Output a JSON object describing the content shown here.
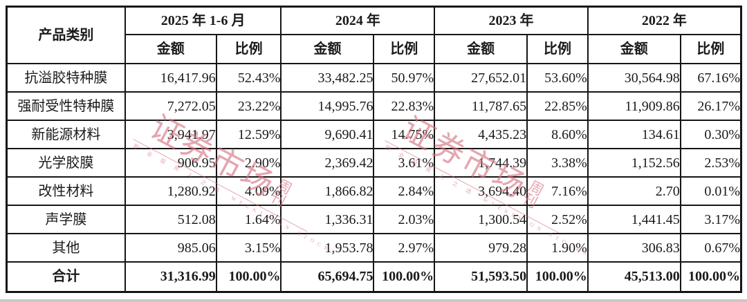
{
  "table": {
    "corner_header": "产品类别",
    "col_groups": [
      {
        "label": "2025 年 1-6 月",
        "amount_header": "金额",
        "ratio_header": "比例"
      },
      {
        "label": "2024 年",
        "amount_header": "金额",
        "ratio_header": "比例"
      },
      {
        "label": "2023 年",
        "amount_header": "金额",
        "ratio_header": "比例"
      },
      {
        "label": "2022 年",
        "amount_header": "金额",
        "ratio_header": "比例"
      }
    ],
    "rows": [
      {
        "label": "抗溢胶特种膜",
        "cells": [
          "16,417.96",
          "52.43%",
          "33,482.25",
          "50.97%",
          "27,652.01",
          "53.60%",
          "30,564.98",
          "67.16%"
        ]
      },
      {
        "label": "强耐受性特种膜",
        "cells": [
          "7,272.05",
          "23.22%",
          "14,995.76",
          "22.83%",
          "11,787.65",
          "22.85%",
          "11,909.86",
          "26.17%"
        ]
      },
      {
        "label": "新能源材料",
        "cells": [
          "3,941.97",
          "12.59%",
          "9,690.41",
          "14.75%",
          "4,435.23",
          "8.60%",
          "134.61",
          "0.30%"
        ]
      },
      {
        "label": "光学胶膜",
        "cells": [
          "906.95",
          "2.90%",
          "2,369.42",
          "3.61%",
          "1,744.39",
          "3.38%",
          "1,152.56",
          "2.53%"
        ]
      },
      {
        "label": "改性材料",
        "cells": [
          "1,280.92",
          "4.09%",
          "1,866.82",
          "2.84%",
          "3,694.40",
          "7.16%",
          "2.70",
          "0.01%"
        ]
      },
      {
        "label": "声学膜",
        "cells": [
          "512.08",
          "1.64%",
          "1,336.31",
          "2.03%",
          "1,300.54",
          "2.52%",
          "1,441.45",
          "3.17%"
        ]
      },
      {
        "label": "其他",
        "cells": [
          "985.06",
          "3.15%",
          "1,953.78",
          "2.97%",
          "979.28",
          "1.90%",
          "306.83",
          "0.67%"
        ]
      }
    ],
    "total_row": {
      "label": "合计",
      "cells": [
        "31,316.99",
        "100.00%",
        "65,694.75",
        "100.00%",
        "51,593.50",
        "100.00%",
        "45,513.00",
        "100.00%"
      ]
    }
  },
  "watermark": {
    "main": "证券市场",
    "sub": "周刊",
    "tagline": "职 业 投 资 人 之 选　WEEKLY ON STOCKS",
    "color": "#d4717f"
  }
}
